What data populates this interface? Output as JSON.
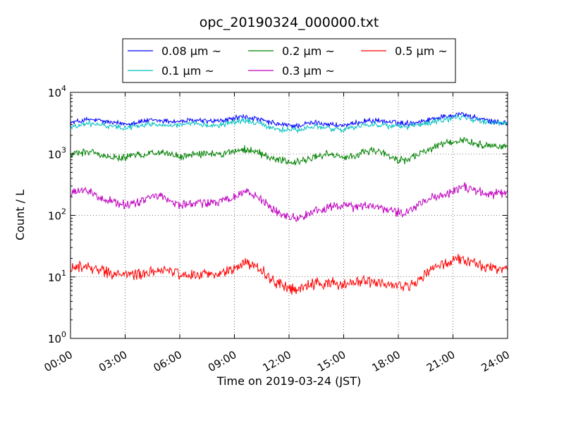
{
  "chart_data": {
    "type": "line",
    "title": "opc_20190324_000000.txt",
    "xlabel": "Time on 2019-03-24 (JST)",
    "ylabel": "Count / L",
    "yscale": "log",
    "xlim": [
      "2019-03-24 00:00",
      "2019-03-25 00:00"
    ],
    "ylim": [
      1,
      10000
    ],
    "grid": true,
    "legend_position": "top-center",
    "x_ticks": [
      "00:00",
      "03:00",
      "06:00",
      "09:00",
      "12:00",
      "15:00",
      "18:00",
      "21:00",
      "24:00"
    ],
    "y_ticks": [
      {
        "base": "10",
        "exp": "0"
      },
      {
        "base": "10",
        "exp": "1"
      },
      {
        "base": "10",
        "exp": "2"
      },
      {
        "base": "10",
        "exp": "3"
      },
      {
        "base": "10",
        "exp": "4"
      }
    ],
    "x_hours": [
      0,
      0.5,
      1,
      1.5,
      2,
      2.5,
      3,
      3.5,
      4,
      4.5,
      5,
      5.5,
      6,
      6.5,
      7,
      7.5,
      8,
      8.5,
      9,
      9.5,
      10,
      10.5,
      11,
      11.5,
      12,
      12.5,
      13,
      13.5,
      14,
      14.5,
      15,
      15.5,
      16,
      16.5,
      17,
      17.5,
      18,
      18.5,
      19,
      19.5,
      20,
      20.5,
      21,
      21.5,
      22,
      22.5,
      23,
      23.5,
      24
    ],
    "series": [
      {
        "name": "0.08 μm ~",
        "color": "#0000ff",
        "values": [
          3200,
          3400,
          3600,
          3500,
          3300,
          3150,
          3100,
          3200,
          3400,
          3500,
          3450,
          3400,
          3350,
          3450,
          3500,
          3400,
          3400,
          3500,
          3800,
          4000,
          3800,
          3500,
          3200,
          3000,
          2900,
          2850,
          3100,
          3200,
          3100,
          2950,
          2900,
          3000,
          3400,
          3500,
          3400,
          3300,
          3200,
          3150,
          3300,
          3500,
          3800,
          4000,
          4300,
          4500,
          4000,
          3700,
          3400,
          3250,
          3200
        ]
      },
      {
        "name": "0.1 μm ~",
        "color": "#00bfbf",
        "values": [
          2700,
          2900,
          3100,
          3000,
          2850,
          2750,
          2700,
          2750,
          2950,
          3050,
          3000,
          2950,
          2900,
          3000,
          3050,
          2950,
          2950,
          3050,
          3300,
          3500,
          3300,
          3000,
          2700,
          2500,
          2450,
          2400,
          2650,
          2750,
          2650,
          2550,
          2500,
          2600,
          2950,
          3050,
          2950,
          2850,
          2800,
          2750,
          2900,
          3050,
          3300,
          3500,
          3800,
          4000,
          3600,
          3400,
          3300,
          3200,
          3100
        ]
      },
      {
        "name": "0.2 μm ~",
        "color": "#008000",
        "values": [
          950,
          1050,
          1100,
          1000,
          900,
          870,
          880,
          920,
          1000,
          1050,
          1100,
          950,
          900,
          950,
          1000,
          980,
          990,
          1020,
          1100,
          1200,
          1150,
          1000,
          850,
          780,
          750,
          720,
          820,
          900,
          1000,
          900,
          850,
          900,
          1050,
          1100,
          1050,
          950,
          800,
          800,
          950,
          1100,
          1300,
          1450,
          1550,
          1700,
          1500,
          1400,
          1350,
          1300,
          1300
        ]
      },
      {
        "name": "0.3 μm ~",
        "color": "#bf00bf",
        "values": [
          220,
          250,
          240,
          210,
          180,
          160,
          150,
          160,
          170,
          200,
          210,
          170,
          150,
          155,
          160,
          155,
          160,
          180,
          200,
          240,
          230,
          180,
          130,
          110,
          95,
          90,
          100,
          120,
          130,
          140,
          150,
          130,
          140,
          150,
          130,
          120,
          110,
          110,
          140,
          170,
          200,
          220,
          250,
          290,
          270,
          240,
          220,
          220,
          230
        ]
      },
      {
        "name": "0.5 μm ~",
        "color": "#ff0000",
        "values": [
          13,
          15,
          14,
          13,
          12,
          11,
          11,
          11,
          11,
          12,
          13,
          12,
          11,
          11,
          11,
          11,
          11,
          12,
          14,
          17,
          16,
          13,
          9,
          7.5,
          6.5,
          6,
          7,
          8,
          8,
          8,
          7.5,
          8,
          8.5,
          8,
          8,
          7.5,
          7,
          7,
          8,
          11,
          14,
          16,
          18,
          20,
          17,
          15,
          14,
          13,
          13
        ]
      }
    ]
  }
}
